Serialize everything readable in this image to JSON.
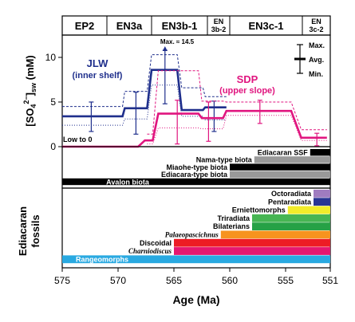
{
  "chart_data": {
    "type": "line",
    "xlabel": "Age (Ma)",
    "ylabel_top": "[SO4 2-]sw (mM)",
    "ylabel_top_parts": {
      "pre": "[SO",
      "sub1": "4",
      "sup": "2−",
      "post": "]",
      "sub2": "sw",
      "unit": " (mM)"
    },
    "ylabel_bottom": "Ediacaran fossils",
    "ylabel_bottom_lines": [
      "Ediacaran",
      "fossils"
    ],
    "x_ticks": [
      575,
      570,
      565,
      560,
      555,
      551
    ],
    "y_ticks": [
      0,
      5,
      10
    ],
    "xlim": [
      575,
      551
    ],
    "ylim": [
      0,
      12.5
    ],
    "zones": [
      {
        "label": "EP2",
        "from": 575,
        "to": 571
      },
      {
        "label": "EN3a",
        "from": 571,
        "to": 567
      },
      {
        "label": "EN3b-1",
        "from": 567,
        "to": 562
      },
      {
        "label": "EN 3b-2",
        "line1": "EN",
        "line2": "3b-2",
        "from": 562,
        "to": 560
      },
      {
        "label": "EN3c-1",
        "from": 560,
        "to": 553.5
      },
      {
        "label": "EN 3c-2",
        "line1": "EN",
        "line2": "3c-2",
        "from": 553.5,
        "to": 551
      }
    ],
    "series": [
      {
        "name": "JLW",
        "sublabel": "(inner shelf)",
        "color": "#1f2f8c",
        "avg": [
          [
            575,
            3.4
          ],
          [
            569.6,
            3.4
          ],
          [
            569.4,
            4.3
          ],
          [
            567.4,
            4.3
          ],
          [
            567,
            8.6
          ],
          [
            564.7,
            8.6
          ],
          [
            564.3,
            4.1
          ],
          [
            562.4,
            4.1
          ],
          [
            562.2,
            4.4
          ],
          [
            560.3,
            4.4
          ]
        ],
        "max": [
          [
            575,
            4.5
          ],
          [
            569.6,
            4.5
          ],
          [
            569.4,
            6.2
          ],
          [
            567.4,
            6.2
          ],
          [
            567,
            10.3
          ],
          [
            564.7,
            10.3
          ],
          [
            564.3,
            6.6
          ],
          [
            562.4,
            6.6
          ],
          [
            562.2,
            5.6
          ],
          [
            560.3,
            5.6
          ]
        ],
        "min": [
          [
            575,
            2.4
          ],
          [
            569.6,
            2.4
          ],
          [
            569.4,
            3.1
          ],
          [
            567.4,
            3.1
          ],
          [
            567,
            6.9
          ],
          [
            564.7,
            6.9
          ],
          [
            564.3,
            3.4
          ],
          [
            562.4,
            3.4
          ],
          [
            562.2,
            3.0
          ],
          [
            560.3,
            3.0
          ]
        ],
        "error_bars": [
          {
            "x": 572.4,
            "low": 1.7,
            "high": 5.0
          },
          {
            "x": 568.4,
            "low": 1.4,
            "high": 6.1
          },
          {
            "x": 565.8,
            "low": 4.8,
            "high": 10.8
          },
          {
            "x": 561.4,
            "low": 1.7,
            "high": 5.1
          }
        ]
      },
      {
        "name": "SDP",
        "sublabel": "(upper slope)",
        "color": "#e0157f",
        "avg": [
          [
            575,
            0
          ],
          [
            568.2,
            0
          ],
          [
            567.6,
            0.7
          ],
          [
            566.9,
            0.7
          ],
          [
            566.4,
            3.7
          ],
          [
            562.8,
            3.7
          ],
          [
            562.5,
            3.2
          ],
          [
            560.6,
            3.2
          ],
          [
            560.3,
            4.0
          ],
          [
            554.5,
            4.0
          ],
          [
            553.6,
            1.0
          ],
          [
            551.3,
            1.0
          ]
        ],
        "max": [
          [
            567.4,
            1.4
          ],
          [
            566.9,
            1.4
          ],
          [
            566.4,
            8.5
          ],
          [
            562.8,
            8.5
          ],
          [
            562.5,
            5.1
          ],
          [
            560.6,
            5.1
          ],
          [
            560.3,
            5.0
          ],
          [
            554.5,
            5.0
          ],
          [
            553.6,
            1.9
          ],
          [
            551.3,
            1.9
          ]
        ],
        "min": [
          [
            567.4,
            0.3
          ],
          [
            566.9,
            0.3
          ],
          [
            566.4,
            2.1
          ],
          [
            562.8,
            2.1
          ],
          [
            562.5,
            2.0
          ],
          [
            560.6,
            2.0
          ],
          [
            560.3,
            3.5
          ],
          [
            554.5,
            3.5
          ],
          [
            553.6,
            0.7
          ],
          [
            551.3,
            0.7
          ]
        ],
        "error_bars": [
          {
            "x": 564.7,
            "low": 0.3,
            "high": 5.2
          },
          {
            "x": 561.9,
            "low": 0.6,
            "high": 5.0
          },
          {
            "x": 557.3,
            "low": 2.6,
            "high": 5.2
          },
          {
            "x": 552.2,
            "low": 0.1,
            "high": 1.5
          }
        ]
      }
    ],
    "annotations": {
      "max_note": "Max. ≈ 14.5",
      "low_note": "Low to 0",
      "legend": [
        "Max.",
        "Avg.",
        "Min."
      ]
    },
    "black_bars": [
      {
        "label": "Ediacaran SSF",
        "from": 552.8,
        "to": 551,
        "color": "#000000"
      },
      {
        "label": "Nama-type biota",
        "from": 557.8,
        "to": 551,
        "color": "#999999"
      },
      {
        "label": "Miaohe-type biota",
        "from": 560,
        "to": 551,
        "color": "#000000"
      },
      {
        "label": "Ediacara-type biota",
        "from": 560,
        "to": 551,
        "color": "#999999"
      },
      {
        "label": "Avalon biota",
        "from": 575,
        "to": 551,
        "color": "#000000"
      }
    ],
    "color_bars": [
      {
        "label": "Octoradiata",
        "from": 552.5,
        "to": 551,
        "color": "#a07cc0",
        "italic": false
      },
      {
        "label": "Pentaradiata",
        "from": 552.5,
        "to": 551,
        "color": "#2a3593",
        "italic": false
      },
      {
        "label": "Erniettomorphs",
        "from": 554.8,
        "to": 551,
        "color": "#f2ec2a",
        "italic": false
      },
      {
        "label": "Triradiata",
        "from": 558,
        "to": 551,
        "color": "#47b553",
        "italic": false
      },
      {
        "label": "Bilaterians",
        "from": 558,
        "to": 551,
        "color": "#26a146",
        "italic": false
      },
      {
        "label": "Palaeopascichnus",
        "from": 560.8,
        "to": 551,
        "color": "#f7931e",
        "italic": true
      },
      {
        "label": "Discoidal",
        "from": 565,
        "to": 551,
        "color": "#ed1c24",
        "italic": false
      },
      {
        "label": "Charniodiscus",
        "from": 565,
        "to": 551,
        "color": "#e5176f",
        "italic": true
      },
      {
        "label": "Rangeomorphs",
        "from": 575,
        "to": 551,
        "color": "#29a9e1",
        "italic": false
      }
    ]
  }
}
